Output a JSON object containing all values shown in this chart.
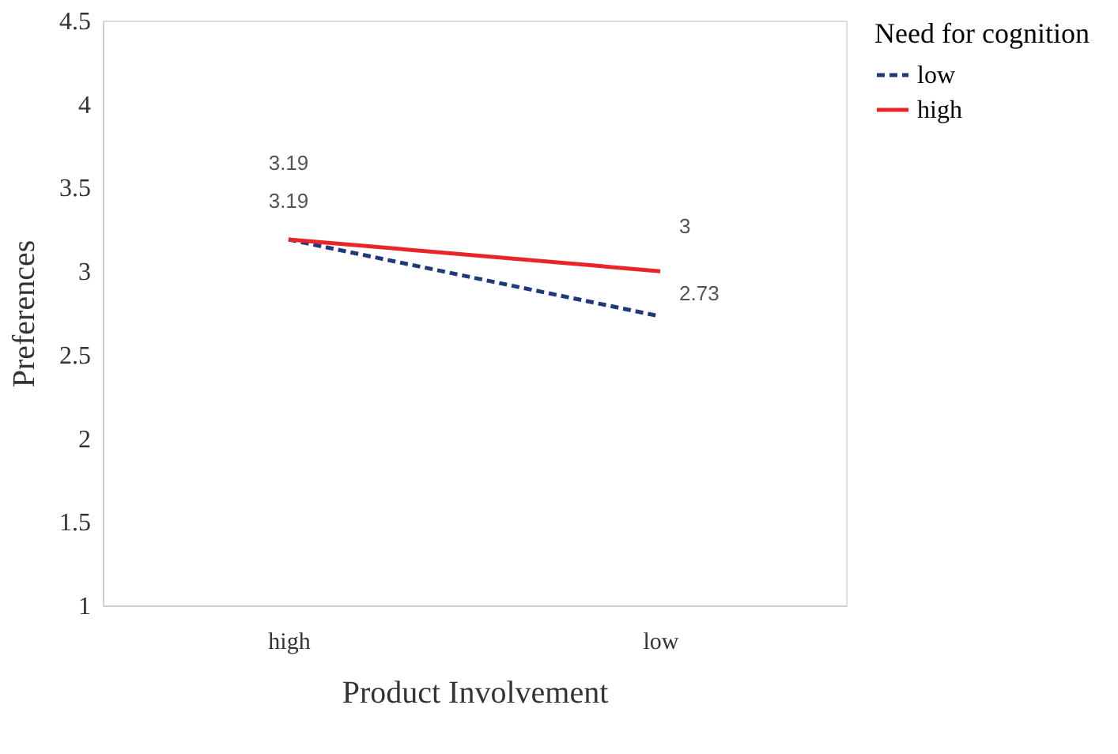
{
  "chart_data": {
    "type": "line",
    "xlabel": "Product Involvement",
    "ylabel": "Preferences",
    "legend_title": "Need for cognition",
    "categories": [
      "high",
      "low"
    ],
    "series": [
      {
        "name": "low",
        "color": "#1f3a7a",
        "values": [
          3.19,
          2.73
        ],
        "line_style": "dashed"
      },
      {
        "name": "high",
        "color": "#e8262a",
        "values": [
          3.19,
          3
        ],
        "line_style": "solid"
      }
    ],
    "ylim": [
      1,
      4.5
    ],
    "yticks": [
      1,
      1.5,
      2,
      2.5,
      3,
      3.5,
      4,
      4.5
    ],
    "grid": false,
    "legend": "right",
    "marker": "none",
    "data_labels": true
  }
}
